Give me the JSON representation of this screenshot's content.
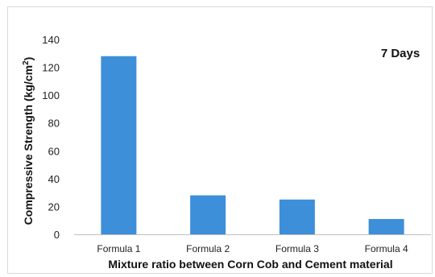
{
  "chart_data": {
    "type": "bar",
    "categories": [
      "Formula 1",
      "Formula 2",
      "Formula 3",
      "Formula 4"
    ],
    "values": [
      128,
      28,
      25,
      11
    ],
    "ylim": [
      0,
      140
    ],
    "yticks": [
      0,
      20,
      40,
      60,
      80,
      100,
      120,
      140
    ],
    "xlabel": "Mixture ratio between Corn Cob and Cement material",
    "ylabel_parts": {
      "main": "Compressive Strength (kg/cm",
      "sup": "2",
      "end": ")"
    },
    "annotation": "7 Days",
    "bar_color": "#3d8fd9",
    "grid": false
  }
}
